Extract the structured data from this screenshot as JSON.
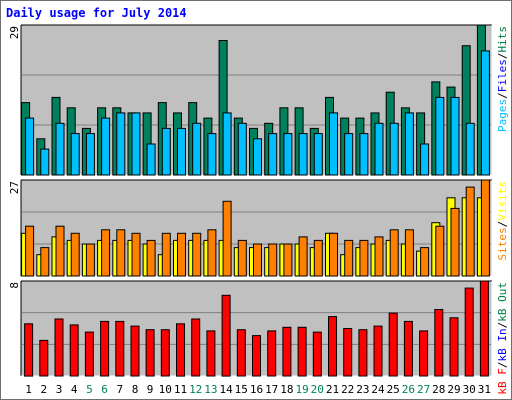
{
  "chart_data": [
    {
      "type": "bar",
      "panel": "hits-files-pages",
      "title": "Daily usage for July 2014",
      "max_label": "29",
      "categories": [
        "1",
        "2",
        "3",
        "4",
        "5",
        "6",
        "7",
        "8",
        "9",
        "10",
        "11",
        "12",
        "13",
        "14",
        "15",
        "16",
        "17",
        "18",
        "19",
        "20",
        "21",
        "22",
        "23",
        "24",
        "25",
        "26",
        "27",
        "28",
        "29",
        "30",
        "31"
      ],
      "weekend_days": [
        "5",
        "6",
        "12",
        "13",
        "19",
        "20",
        "26",
        "27"
      ],
      "ylim": [
        0,
        29
      ],
      "legend": [
        {
          "text": "Pages",
          "color": "#00bfff"
        },
        {
          "text": "/",
          "color": "#000000"
        },
        {
          "text": "Files",
          "color": "#0000ff"
        },
        {
          "text": "/",
          "color": "#000000"
        },
        {
          "text": "Hits",
          "color": "#008040"
        }
      ],
      "series": [
        {
          "name": "Hits",
          "color": "#00805c",
          "values": [
            14,
            7,
            15,
            13,
            9,
            13,
            13,
            12,
            12,
            14,
            12,
            14,
            11,
            26,
            11,
            9,
            10,
            13,
            13,
            9,
            15,
            11,
            11,
            12,
            16,
            13,
            12,
            18,
            17,
            25,
            29
          ]
        },
        {
          "name": "Pages",
          "color": "#00bfff",
          "values": [
            11,
            5,
            10,
            8,
            8,
            11,
            12,
            12,
            6,
            9,
            9,
            10,
            8,
            12,
            10,
            7,
            8,
            8,
            8,
            8,
            12,
            8,
            8,
            10,
            10,
            12,
            6,
            15,
            15,
            10,
            24
          ]
        }
      ]
    },
    {
      "type": "bar",
      "panel": "visits-sites",
      "max_label": "27",
      "categories": [
        "1",
        "2",
        "3",
        "4",
        "5",
        "6",
        "7",
        "8",
        "9",
        "10",
        "11",
        "12",
        "13",
        "14",
        "15",
        "16",
        "17",
        "18",
        "19",
        "20",
        "21",
        "22",
        "23",
        "24",
        "25",
        "26",
        "27",
        "28",
        "29",
        "30",
        "31"
      ],
      "ylim": [
        0,
        27
      ],
      "legend": [
        {
          "text": "Sites",
          "color": "#ff8000"
        },
        {
          "text": "/",
          "color": "#000000"
        },
        {
          "text": "Visits",
          "color": "#ffff00"
        }
      ],
      "series": [
        {
          "name": "Visits",
          "color": "#ffff00",
          "values": [
            12,
            6,
            11,
            10,
            9,
            10,
            10,
            10,
            9,
            6,
            10,
            10,
            10,
            10,
            8,
            8,
            8,
            9,
            9,
            8,
            12,
            6,
            8,
            9,
            10,
            9,
            7,
            15,
            22,
            22,
            22
          ]
        },
        {
          "name": "Sites",
          "color": "#ff8000",
          "values": [
            14,
            8,
            14,
            12,
            9,
            13,
            13,
            12,
            10,
            12,
            12,
            12,
            13,
            21,
            10,
            9,
            9,
            9,
            11,
            10,
            12,
            10,
            10,
            11,
            13,
            13,
            8,
            14,
            19,
            25,
            27
          ]
        }
      ]
    },
    {
      "type": "bar",
      "panel": "kbytes",
      "max_label": "8",
      "categories": [
        "1",
        "2",
        "3",
        "4",
        "5",
        "6",
        "7",
        "8",
        "9",
        "10",
        "11",
        "12",
        "13",
        "14",
        "15",
        "16",
        "17",
        "18",
        "19",
        "20",
        "21",
        "22",
        "23",
        "24",
        "25",
        "26",
        "27",
        "28",
        "29",
        "30",
        "31"
      ],
      "ylim": [
        0,
        8
      ],
      "legend": [
        {
          "text": "kB F",
          "color": "#ff0000"
        },
        {
          "text": "/",
          "color": "#000000"
        },
        {
          "text": "kB In",
          "color": "#0000ff"
        },
        {
          "text": "/",
          "color": "#000000"
        },
        {
          "text": "kB Out",
          "color": "#008040"
        }
      ],
      "series": [
        {
          "name": "kB F",
          "color": "#ff0000",
          "values": [
            4.4,
            3.0,
            4.8,
            4.3,
            3.7,
            4.6,
            4.6,
            4.2,
            3.9,
            3.9,
            4.4,
            4.8,
            3.8,
            6.8,
            3.9,
            3.4,
            3.8,
            4.1,
            4.1,
            3.7,
            5.0,
            4.0,
            3.9,
            4.2,
            5.3,
            4.6,
            3.8,
            5.6,
            4.9,
            7.4,
            8.0
          ]
        }
      ]
    }
  ]
}
